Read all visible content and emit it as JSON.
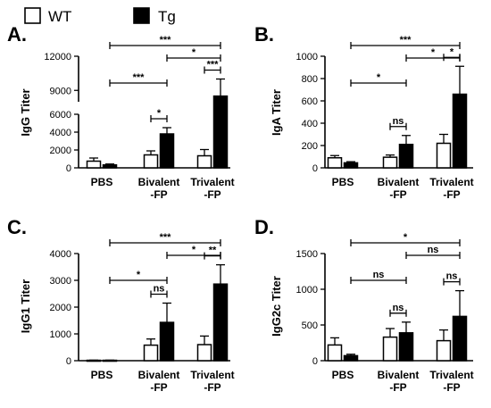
{
  "legend": {
    "wt_label": "WT",
    "tg_label": "Tg",
    "wt_color": "#ffffff",
    "tg_color": "#000000"
  },
  "chart_data": [
    {
      "type": "bar",
      "panel_label": "A.",
      "ylabel": "IgG Titer",
      "categories": [
        "PBS",
        "Bivalent\n-FP",
        "Trivalent\n-FP"
      ],
      "ylim": [
        0,
        12000
      ],
      "axis_break": {
        "lower_range": [
          0,
          6000
        ],
        "upper_range": [
          8000,
          12000
        ]
      },
      "yticks": [
        0,
        2000,
        4000,
        6000,
        9000,
        12000
      ],
      "series": [
        {
          "name": "WT",
          "values": [
            750,
            1450,
            1350
          ],
          "errors": [
            350,
            450,
            700
          ]
        },
        {
          "name": "Tg",
          "values": [
            330,
            3800,
            8500
          ],
          "errors": [
            100,
            700,
            1500
          ]
        }
      ],
      "significance": [
        {
          "from": [
            1,
            0
          ],
          "to": [
            1,
            1
          ],
          "label": "*"
        },
        {
          "from": [
            0,
            1
          ],
          "to": [
            1,
            1
          ],
          "label": "***"
        },
        {
          "from": [
            2,
            0
          ],
          "to": [
            2,
            1
          ],
          "label": "***"
        },
        {
          "from": [
            1,
            1
          ],
          "to": [
            2,
            1
          ],
          "label": "*"
        },
        {
          "from": [
            0,
            1
          ],
          "to": [
            2,
            1
          ],
          "label": "***"
        }
      ]
    },
    {
      "type": "bar",
      "panel_label": "B.",
      "ylabel": "IgA Titer",
      "categories": [
        "PBS",
        "Bivalent\n-FP",
        "Trivalent\n-FP"
      ],
      "ylim": [
        0,
        1000
      ],
      "yticks": [
        0,
        200,
        400,
        600,
        800,
        1000
      ],
      "series": [
        {
          "name": "WT",
          "values": [
            90,
            95,
            220
          ],
          "errors": [
            20,
            20,
            80
          ]
        },
        {
          "name": "Tg",
          "values": [
            45,
            210,
            660
          ],
          "errors": [
            10,
            80,
            250
          ]
        }
      ],
      "significance": [
        {
          "from": [
            1,
            0
          ],
          "to": [
            1,
            1
          ],
          "label": "ns"
        },
        {
          "from": [
            0,
            1
          ],
          "to": [
            1,
            1
          ],
          "label": "*"
        },
        {
          "from": [
            2,
            0
          ],
          "to": [
            2,
            1
          ],
          "label": "*"
        },
        {
          "from": [
            1,
            1
          ],
          "to": [
            2,
            1
          ],
          "label": "*"
        },
        {
          "from": [
            0,
            1
          ],
          "to": [
            2,
            1
          ],
          "label": "***"
        }
      ]
    },
    {
      "type": "bar",
      "panel_label": "C.",
      "ylabel": "IgG1 Titer",
      "categories": [
        "PBS",
        "Bivalent\n-FP",
        "Trivalent\n-FP"
      ],
      "ylim": [
        0,
        4000
      ],
      "yticks": [
        0,
        1000,
        2000,
        3000,
        4000
      ],
      "series": [
        {
          "name": "WT",
          "values": [
            15,
            580,
            600
          ],
          "errors": [
            5,
            230,
            320
          ]
        },
        {
          "name": "Tg",
          "values": [
            15,
            1430,
            2860
          ],
          "errors": [
            5,
            720,
            720
          ]
        }
      ],
      "significance": [
        {
          "from": [
            1,
            0
          ],
          "to": [
            1,
            1
          ],
          "label": "ns"
        },
        {
          "from": [
            0,
            1
          ],
          "to": [
            1,
            1
          ],
          "label": "*"
        },
        {
          "from": [
            2,
            0
          ],
          "to": [
            2,
            1
          ],
          "label": "**"
        },
        {
          "from": [
            1,
            1
          ],
          "to": [
            2,
            1
          ],
          "label": "*"
        },
        {
          "from": [
            0,
            1
          ],
          "to": [
            2,
            1
          ],
          "label": "***"
        }
      ]
    },
    {
      "type": "bar",
      "panel_label": "D.",
      "ylabel": "IgG2c Titer",
      "categories": [
        "PBS",
        "Bivalent\n-FP",
        "Trivalent\n-FP"
      ],
      "ylim": [
        0,
        1500
      ],
      "yticks": [
        0,
        500,
        1000,
        1500
      ],
      "series": [
        {
          "name": "WT",
          "values": [
            220,
            330,
            280
          ],
          "errors": [
            100,
            120,
            150
          ]
        },
        {
          "name": "Tg",
          "values": [
            70,
            390,
            620
          ],
          "errors": [
            20,
            150,
            360
          ]
        }
      ],
      "significance": [
        {
          "from": [
            1,
            0
          ],
          "to": [
            1,
            1
          ],
          "label": "ns"
        },
        {
          "from": [
            0,
            1
          ],
          "to": [
            1,
            1
          ],
          "label": "ns"
        },
        {
          "from": [
            2,
            0
          ],
          "to": [
            2,
            1
          ],
          "label": "ns"
        },
        {
          "from": [
            1,
            1
          ],
          "to": [
            2,
            1
          ],
          "label": "ns"
        },
        {
          "from": [
            0,
            1
          ],
          "to": [
            2,
            1
          ],
          "label": "*"
        }
      ]
    }
  ]
}
